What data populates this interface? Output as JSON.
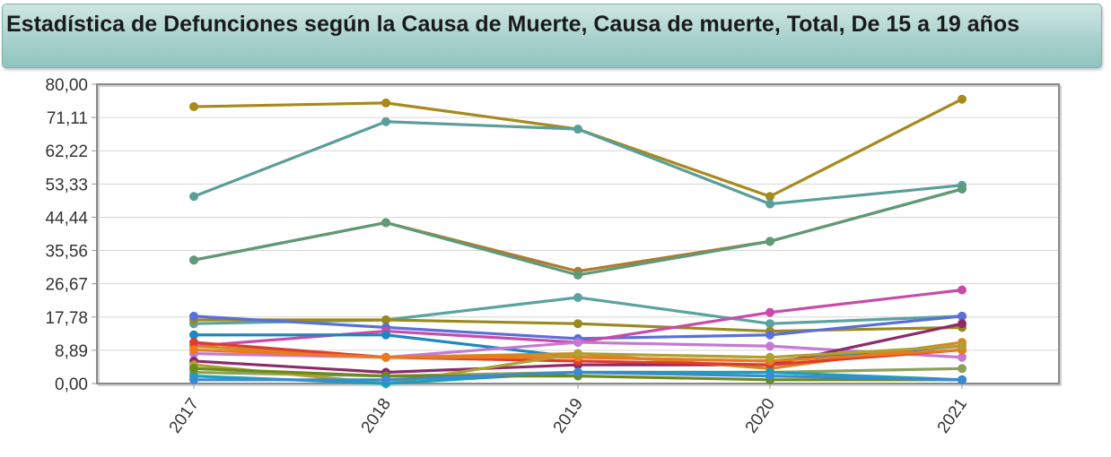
{
  "title": "Estadística de Defunciones según la Causa de Muerte, Causa de muerte, Total, De 15 a 19 años",
  "chart_data": {
    "type": "line",
    "title": "Estadística de Defunciones según la Causa de Muerte, Causa de muerte, Total, De 15 a 19 años",
    "categories": [
      "2017",
      "2018",
      "2019",
      "2020",
      "2021"
    ],
    "y_ticks": [
      "0,00",
      "8,89",
      "17,78",
      "26,67",
      "35,56",
      "44,44",
      "53,33",
      "62,22",
      "71,11",
      "80,00"
    ],
    "ylim": [
      0,
      80
    ],
    "grid": true,
    "series": [
      {
        "color": "#a8891c",
        "values": [
          74,
          75,
          68,
          50,
          76
        ]
      },
      {
        "color": "#5a9e9a",
        "values": [
          50,
          70,
          68,
          48,
          53
        ]
      },
      {
        "color": "#b07a2e",
        "values": [
          33,
          43,
          30,
          38,
          52
        ]
      },
      {
        "color": "#5e9a78",
        "values": [
          33,
          43,
          29,
          38,
          52
        ]
      },
      {
        "color": "#5aa3a0",
        "values": [
          16,
          17,
          23,
          16,
          18
        ]
      },
      {
        "color": "#9a8a1e",
        "values": [
          17,
          17,
          16,
          14,
          15
        ]
      },
      {
        "color": "#5a6fd8",
        "values": [
          18,
          15,
          12,
          13,
          18
        ]
      },
      {
        "color": "#c94aa8",
        "values": [
          10,
          14,
          11,
          19,
          25
        ]
      },
      {
        "color": "#1e88c0",
        "values": [
          13,
          13,
          7,
          6,
          10
        ]
      },
      {
        "color": "#c47ad4",
        "values": [
          8,
          7,
          11,
          10,
          7
        ]
      },
      {
        "color": "#8c2a6a",
        "values": [
          6,
          3,
          5,
          5,
          16
        ]
      },
      {
        "color": "#d4881e",
        "values": [
          10,
          7,
          8,
          4,
          11
        ]
      },
      {
        "color": "#e03c2e",
        "values": [
          11,
          7,
          6,
          5,
          9
        ]
      },
      {
        "color": "#ec7a1c",
        "values": [
          9,
          7,
          7,
          6,
          9
        ]
      },
      {
        "color": "#8fa05a",
        "values": [
          3,
          2,
          3,
          3,
          4
        ]
      },
      {
        "color": "#b0a030",
        "values": [
          5,
          0,
          8,
          7,
          10
        ]
      },
      {
        "color": "#1aa0b8",
        "values": [
          2,
          0,
          3,
          3,
          1
        ]
      },
      {
        "color": "#6a8a1a",
        "values": [
          4,
          2,
          2,
          1,
          1
        ]
      },
      {
        "color": "#3a8ad4",
        "values": [
          1,
          1,
          3,
          2,
          1
        ]
      }
    ]
  }
}
